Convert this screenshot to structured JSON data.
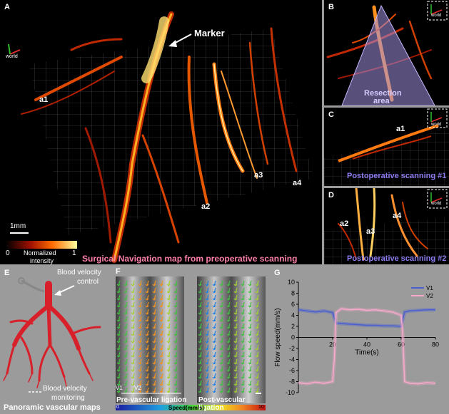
{
  "panel_a": {
    "letter": "A",
    "axis_label": "world",
    "marker_label": "Marker",
    "vessels": [
      "a1",
      "a2",
      "a3",
      "a4"
    ],
    "scalebar": "1mm",
    "colorbar": {
      "min": "0",
      "max": "1",
      "label_line1": "Normalized",
      "label_line2": "intensity"
    },
    "caption": "Surgical Navigation map from preoperative scanning"
  },
  "panel_b": {
    "letter": "B",
    "axis_label": "world",
    "resection_line1": "Resection",
    "resection_line2": "area"
  },
  "panel_c": {
    "letter": "C",
    "axis_label": "world",
    "vessel": "a1",
    "caption": "Postoperative scanning #1"
  },
  "panel_d": {
    "letter": "D",
    "axis_label": "world",
    "vessels": [
      "a2",
      "a3",
      "a4"
    ],
    "caption": "Postoperative scanning #2"
  },
  "panel_e": {
    "letter": "E",
    "control_line1": "Blood velocity",
    "control_line2": "control",
    "monitor_line1": "Blood  velocity",
    "monitor_line2": "monitoring",
    "caption": "Panoramic vascular maps"
  },
  "panel_f": {
    "letter": "F",
    "pre_label": "Pre-vascular ligation",
    "post_label": "Post-vascular ligation",
    "v1": "V1",
    "v2": "V2",
    "colorbar_min": "0",
    "colorbar_max": "10",
    "colorbar_label": "Speed(mm/s)"
  },
  "panel_g": {
    "letter": "G"
  },
  "chart_data": {
    "type": "line",
    "xlabel": "Time(s)",
    "ylabel": "Flow speed(mm/s)",
    "xlim": [
      0,
      80
    ],
    "ylim": [
      -10,
      10
    ],
    "xticks": [
      20,
      40,
      60,
      80
    ],
    "yticks": [
      -10,
      -8,
      -6,
      -4,
      -2,
      0,
      2,
      4,
      6,
      8,
      10
    ],
    "legend_position": "top-right",
    "series": [
      {
        "name": "V1",
        "color": "#4a5fd0",
        "x": [
          0,
          5,
          10,
          15,
          20,
          22,
          25,
          30,
          35,
          40,
          45,
          50,
          55,
          60,
          62,
          65,
          70,
          75,
          80
        ],
        "y": [
          5,
          4.8,
          4.6,
          4.8,
          4.5,
          2.6,
          2.5,
          2.4,
          2.3,
          2.2,
          2.2,
          2.1,
          2.1,
          2.0,
          4.6,
          4.8,
          4.9,
          5.0,
          5.0
        ]
      },
      {
        "name": "V2",
        "color": "#f7a8cc",
        "x": [
          0,
          5,
          10,
          15,
          20,
          21,
          22,
          25,
          30,
          35,
          40,
          45,
          50,
          55,
          60,
          61,
          62,
          65,
          70,
          75,
          80
        ],
        "y": [
          -8.2,
          -8.4,
          -8.1,
          -8.3,
          -8.0,
          -4,
          4.5,
          5.2,
          5.0,
          5.1,
          4.9,
          5.0,
          4.8,
          4.6,
          4.0,
          0,
          -8.0,
          -8.3,
          -8.4,
          -8.2,
          -8.3
        ]
      }
    ]
  }
}
